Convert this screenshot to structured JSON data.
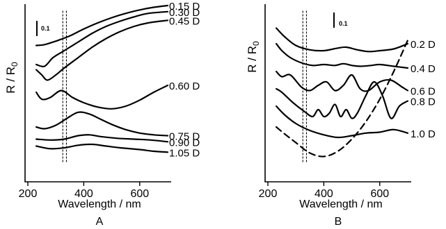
{
  "figure": {
    "panels": [
      {
        "letter": "A",
        "scale_bar_label": "0.1"
      },
      {
        "letter": "B",
        "scale_bar_label": "0.1"
      }
    ]
  },
  "chart_data": [
    {
      "type": "line",
      "panel": "A",
      "xlabel": "Wavelength / nm",
      "ylabel_main": "R / R",
      "ylabel_sub": "0",
      "xlim": [
        200,
        700
      ],
      "xticks": [
        200,
        400,
        600
      ],
      "marker_lines_nm": [
        325,
        338
      ],
      "scale_bar": "0.1",
      "series": [
        {
          "name": "0.15 D",
          "x": [
            230,
            260,
            300,
            350,
            400,
            450,
            500,
            550,
            600,
            650,
            700
          ],
          "y": [
            0.77,
            0.775,
            0.795,
            0.825,
            0.865,
            0.9,
            0.93,
            0.955,
            0.975,
            0.99,
            1.0
          ]
        },
        {
          "name": "0.30 D",
          "x": [
            230,
            260,
            290,
            330,
            380,
            430,
            480,
            530,
            580,
            630,
            700
          ],
          "y": [
            0.66,
            0.65,
            0.7,
            0.74,
            0.79,
            0.84,
            0.88,
            0.91,
            0.935,
            0.955,
            0.965
          ]
        },
        {
          "name": "0.45 D",
          "x": [
            230,
            250,
            270,
            300,
            330,
            380,
            430,
            480,
            530,
            580,
            630,
            700
          ],
          "y": [
            0.63,
            0.6,
            0.57,
            0.6,
            0.64,
            0.7,
            0.76,
            0.81,
            0.85,
            0.88,
            0.9,
            0.915
          ]
        },
        {
          "name": "0.60 D",
          "x": [
            230,
            250,
            280,
            320,
            360,
            400,
            450,
            500,
            550,
            600,
            650,
            700
          ],
          "y": [
            0.5,
            0.46,
            0.47,
            0.51,
            0.47,
            0.44,
            0.415,
            0.405,
            0.42,
            0.455,
            0.5,
            0.54
          ]
        },
        {
          "name": "0.75 D",
          "x": [
            230,
            260,
            300,
            340,
            380,
            420,
            460,
            500,
            550,
            600,
            650,
            700
          ],
          "y": [
            0.3,
            0.29,
            0.31,
            0.35,
            0.385,
            0.375,
            0.345,
            0.315,
            0.285,
            0.265,
            0.255,
            0.25
          ]
        },
        {
          "name": "0.90 D",
          "x": [
            230,
            280,
            330,
            380,
            420,
            460,
            520,
            580,
            640,
            700
          ],
          "y": [
            0.23,
            0.225,
            0.23,
            0.25,
            0.255,
            0.245,
            0.235,
            0.23,
            0.225,
            0.215
          ]
        },
        {
          "name": "1.05 D",
          "x": [
            230,
            280,
            330,
            380,
            430,
            480,
            530,
            600,
            650,
            700
          ],
          "y": [
            0.19,
            0.175,
            0.18,
            0.195,
            0.2,
            0.19,
            0.18,
            0.17,
            0.16,
            0.155
          ]
        }
      ]
    },
    {
      "type": "line",
      "panel": "B",
      "xlabel": "Wavelength / nm",
      "ylabel_main": "R / R",
      "ylabel_sub": "0",
      "xlim": [
        200,
        700
      ],
      "xticks": [
        200,
        400,
        600
      ],
      "marker_lines_nm": [
        325,
        338
      ],
      "scale_bar": "0.1",
      "series": [
        {
          "name": "0.2 D",
          "x": [
            230,
            260,
            300,
            350,
            400,
            450,
            480,
            520,
            560,
            600,
            650,
            700
          ],
          "y": [
            0.87,
            0.82,
            0.77,
            0.745,
            0.74,
            0.755,
            0.76,
            0.745,
            0.735,
            0.74,
            0.75,
            0.78
          ]
        },
        {
          "name": "0.4 D",
          "x": [
            230,
            250,
            280,
            320,
            360,
            400,
            440,
            470,
            500,
            530,
            570,
            600,
            650,
            700
          ],
          "y": [
            0.78,
            0.74,
            0.7,
            0.67,
            0.655,
            0.66,
            0.655,
            0.665,
            0.655,
            0.65,
            0.655,
            0.66,
            0.65,
            0.64
          ]
        },
        {
          "name": "0.6 D",
          "x": [
            230,
            250,
            280,
            320,
            350,
            380,
            410,
            440,
            470,
            500,
            530,
            560,
            600,
            640,
            680,
            700
          ],
          "y": [
            0.62,
            0.59,
            0.6,
            0.53,
            0.51,
            0.54,
            0.56,
            0.51,
            0.54,
            0.6,
            0.52,
            0.51,
            0.56,
            0.57,
            0.53,
            0.51
          ]
        },
        {
          "name": "0.8 D",
          "x": [
            230,
            250,
            290,
            330,
            360,
            380,
            400,
            420,
            440,
            460,
            480,
            500,
            520,
            550,
            580,
            610,
            640,
            670,
            700
          ],
          "y": [
            0.52,
            0.5,
            0.44,
            0.39,
            0.36,
            0.4,
            0.36,
            0.38,
            0.43,
            0.36,
            0.4,
            0.35,
            0.38,
            0.48,
            0.56,
            0.48,
            0.35,
            0.42,
            0.45
          ]
        },
        {
          "name": "1.0 D",
          "x": [
            230,
            260,
            300,
            350,
            400,
            450,
            500,
            550,
            600,
            650,
            700
          ],
          "y": [
            0.42,
            0.37,
            0.32,
            0.28,
            0.255,
            0.24,
            0.25,
            0.265,
            0.27,
            0.285,
            0.265
          ]
        },
        {
          "name": "",
          "style": "dashed",
          "x": [
            230,
            260,
            300,
            350,
            400,
            450,
            500,
            550,
            600,
            650,
            700
          ],
          "y": [
            0.3,
            0.26,
            0.21,
            0.15,
            0.13,
            0.16,
            0.23,
            0.33,
            0.46,
            0.62,
            0.8
          ]
        }
      ]
    }
  ]
}
